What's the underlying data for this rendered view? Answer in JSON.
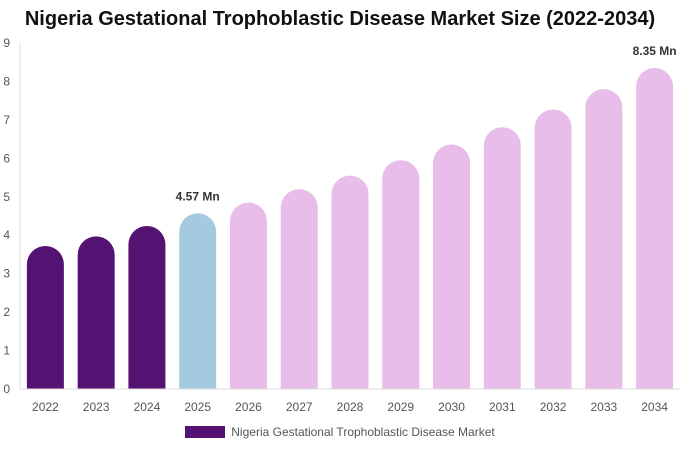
{
  "chart_data": {
    "type": "bar",
    "title": "Nigeria Gestational Trophoblastic Disease Market Size (2022-2034)",
    "xlabel": "",
    "ylabel": "",
    "categories": [
      "2022",
      "2023",
      "2024",
      "2025",
      "2026",
      "2027",
      "2028",
      "2029",
      "2030",
      "2031",
      "2032",
      "2033",
      "2034"
    ],
    "series": [
      {
        "name": "Nigeria Gestational Trophoblastic Disease Market",
        "values": [
          3.72,
          3.97,
          4.24,
          4.57,
          4.85,
          5.2,
          5.55,
          5.95,
          6.36,
          6.81,
          7.27,
          7.8,
          8.35
        ]
      }
    ],
    "data_labels": [
      {
        "category": "2025",
        "text": "4.57 Mn"
      },
      {
        "category": "2034",
        "text": "8.35 Mn"
      }
    ],
    "ylim": [
      0,
      9
    ],
    "yticks": [
      0,
      1,
      2,
      3,
      4,
      5,
      6,
      7,
      8,
      9
    ],
    "grid": false,
    "legend": "bottom-center",
    "colors": {
      "historical": "#541273",
      "base_year": "#a4cadf",
      "forecast": "#e8bde9",
      "axis": "#dddddd"
    }
  }
}
